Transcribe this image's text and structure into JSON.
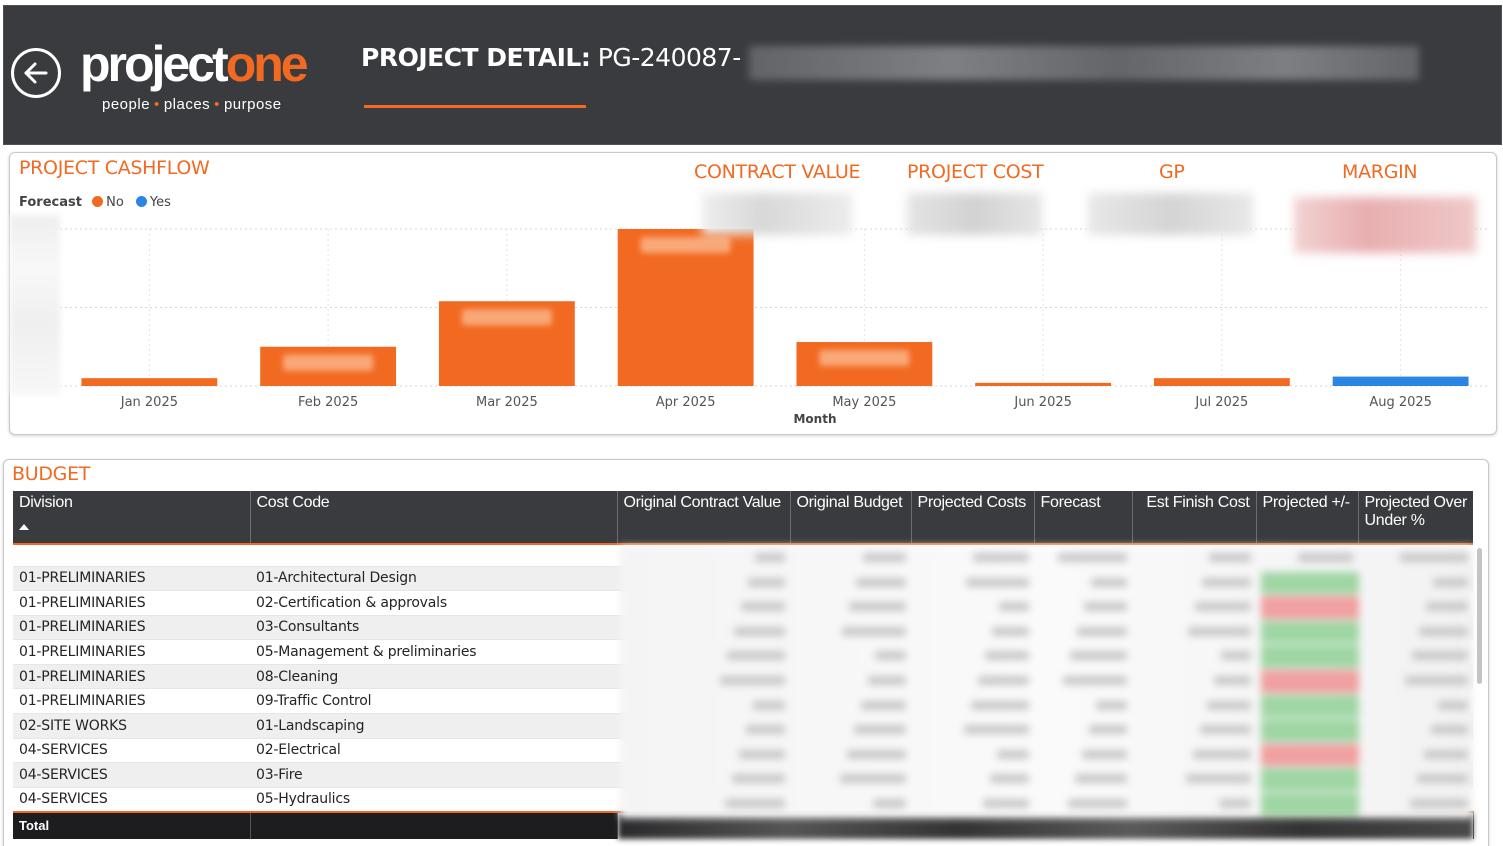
{
  "header": {
    "logo_part1": "project",
    "logo_part2": "one",
    "tagline_words": [
      "people",
      "places",
      "purpose"
    ],
    "title_bold": "PROJECT DETAIL:",
    "title_code": "PG-240087-",
    "back_icon": "back-arrow-icon"
  },
  "cashflow": {
    "title": "PROJECT CASHFLOW",
    "legend_title": "Forecast",
    "legend": [
      {
        "label": "No",
        "color": "#f26a22"
      },
      {
        "label": "Yes",
        "color": "#2b86e3"
      }
    ],
    "kpis": [
      {
        "label": "CONTRACT VALUE"
      },
      {
        "label": "PROJECT COST"
      },
      {
        "label": "GP"
      },
      {
        "label": "MARGIN"
      }
    ]
  },
  "chart_data": {
    "type": "bar",
    "title": "PROJECT CASHFLOW",
    "xlabel": "Month",
    "ylabel": "",
    "categories": [
      "Jan 2025",
      "Feb 2025",
      "Mar 2025",
      "Apr 2025",
      "May 2025",
      "Jun 2025",
      "Jul 2025",
      "Aug 2025"
    ],
    "values": [
      5,
      25,
      54,
      100,
      28,
      2,
      5,
      6
    ],
    "forecast": [
      "No",
      "No",
      "No",
      "No",
      "No",
      "No",
      "No",
      "Yes"
    ],
    "colors": {
      "No": "#f26a22",
      "Yes": "#2b86e3"
    },
    "ylim": [
      0,
      100
    ],
    "grid": true,
    "legend_position": "top-left"
  },
  "budget": {
    "title": "BUDGET",
    "columns": [
      "Division",
      "Cost Code",
      "Original Contract Value",
      "Original Budget",
      "Projected Costs",
      "Forecast",
      "Est Finish Cost",
      "Projected +/-",
      "Projected Over Under %"
    ],
    "rows": [
      {
        "division": "01-PRELIMINARIES",
        "cost_code": "01-Architectural Design",
        "status": "positive"
      },
      {
        "division": "01-PRELIMINARIES",
        "cost_code": "02-Certification & approvals",
        "status": "negative"
      },
      {
        "division": "01-PRELIMINARIES",
        "cost_code": "03-Consultants",
        "status": "positive"
      },
      {
        "division": "01-PRELIMINARIES",
        "cost_code": "05-Management & preliminaries",
        "status": "positive"
      },
      {
        "division": "01-PRELIMINARIES",
        "cost_code": "08-Cleaning",
        "status": "negative"
      },
      {
        "division": "01-PRELIMINARIES",
        "cost_code": "09-Traffic Control",
        "status": "positive"
      },
      {
        "division": "02-SITE WORKS",
        "cost_code": "01-Landscaping",
        "status": "positive"
      },
      {
        "division": "04-SERVICES",
        "cost_code": "02-Electrical",
        "status": "negative"
      },
      {
        "division": "04-SERVICES",
        "cost_code": "03-Fire",
        "status": "positive"
      },
      {
        "division": "04-SERVICES",
        "cost_code": "05-Hydraulics",
        "status": "positive"
      }
    ],
    "total_label": "Total",
    "status_colors": {
      "positive": "#9fd6a4",
      "negative": "#f0a0a0"
    }
  }
}
